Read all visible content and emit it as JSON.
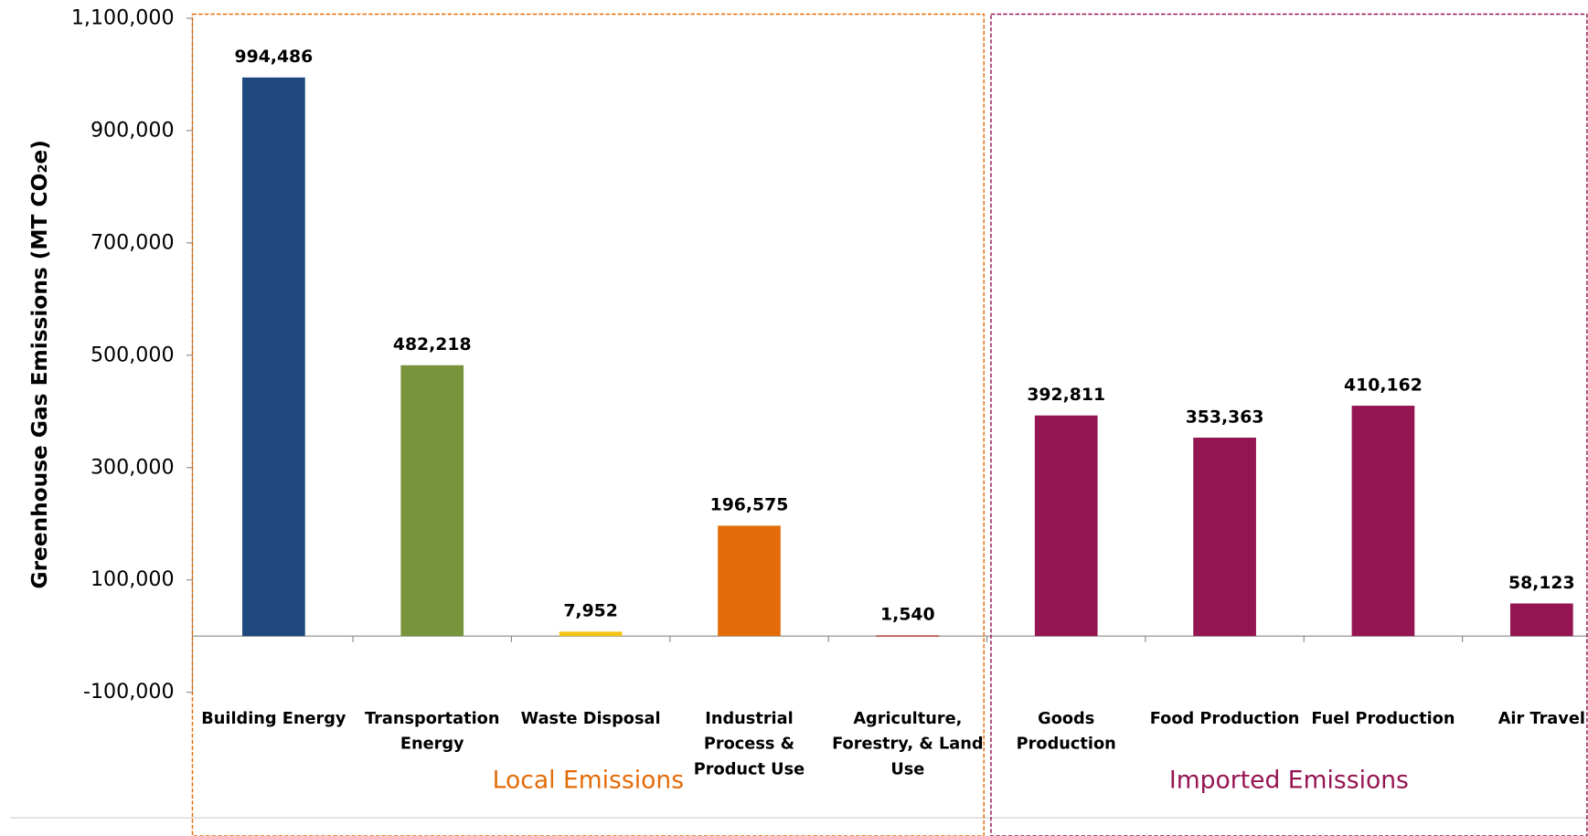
{
  "chart_data": {
    "type": "bar",
    "y_label": "Greenhouse Gas Emissions (MT CO₂e)",
    "categories": [
      "Building Energy",
      "Transportation Energy",
      "Waste Disposal",
      "Industrial Process & Product Use",
      "Agriculture, Forestry, & Land Use",
      "Goods Production",
      "Food Production",
      "Fuel Production",
      "Air Travel"
    ],
    "values": [
      994486,
      482218,
      7952,
      196575,
      1540,
      392811,
      353363,
      410162,
      58123
    ],
    "value_labels": [
      "994,486",
      "482,218",
      "7,952",
      "196,575",
      "1,540",
      "392,811",
      "353,363",
      "410,162",
      "58,123"
    ],
    "colors": [
      "#1f497d",
      "#77933c",
      "#f5c314",
      "#e36c09",
      "#c0504d",
      "#951552",
      "#951552",
      "#951552",
      "#951552"
    ],
    "groups": [
      {
        "name": "Local Emissions",
        "color": "#e36c09",
        "count": 5
      },
      {
        "name": "Imported Emissions",
        "color": "#951552",
        "count": 4
      }
    ],
    "ylim": [
      -100000,
      1100000
    ],
    "yticks": [
      {
        "value": -100000,
        "label": "-100,000"
      },
      {
        "value": 100000,
        "label": "100,000"
      },
      {
        "value": 300000,
        "label": "300,000"
      },
      {
        "value": 500000,
        "label": "500,000"
      },
      {
        "value": 700000,
        "label": "700,000"
      },
      {
        "value": 900000,
        "label": "900,000"
      },
      {
        "value": 1100000,
        "label": "1,100,000"
      }
    ],
    "grid": false
  }
}
